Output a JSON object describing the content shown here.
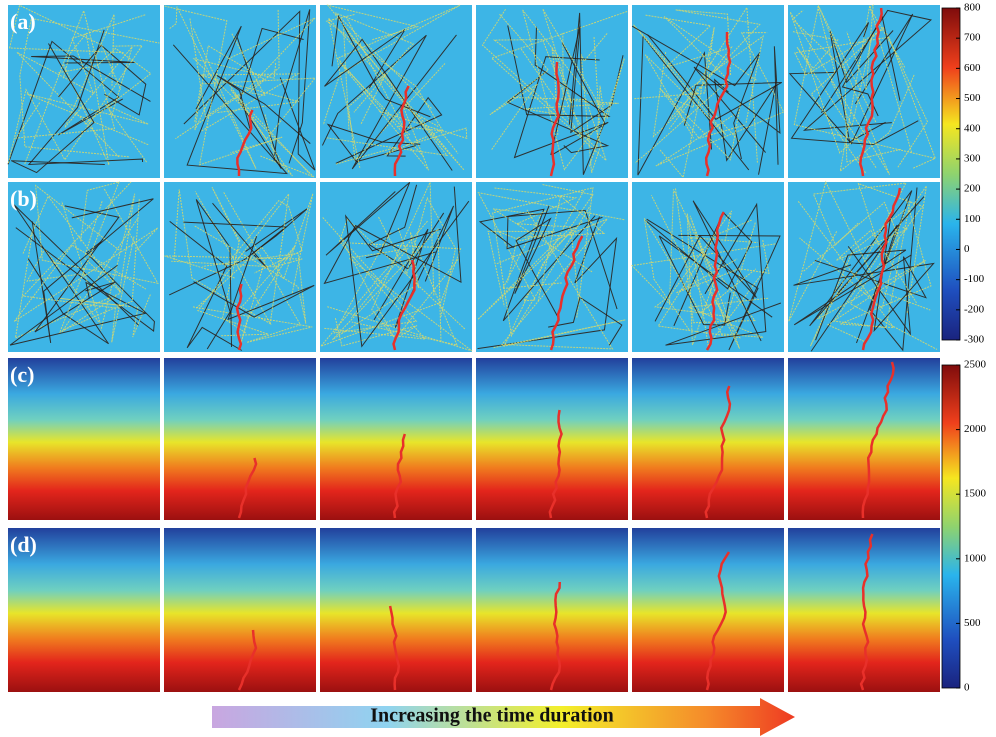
{
  "panels": [
    {
      "label": "(a)"
    },
    {
      "label": "(b)"
    },
    {
      "label": "(c)"
    },
    {
      "label": "(d)"
    }
  ],
  "colorbars": [
    {
      "lim": [
        -300,
        800
      ],
      "ticks": [
        -300,
        -200,
        -100,
        0,
        100,
        200,
        300,
        400,
        500,
        600,
        700,
        800
      ]
    },
    {
      "lim": [
        0,
        2500
      ],
      "ticks": [
        0,
        500,
        1000,
        1500,
        2000,
        2500
      ]
    }
  ],
  "arrow_label": "Increasing the time duration"
}
